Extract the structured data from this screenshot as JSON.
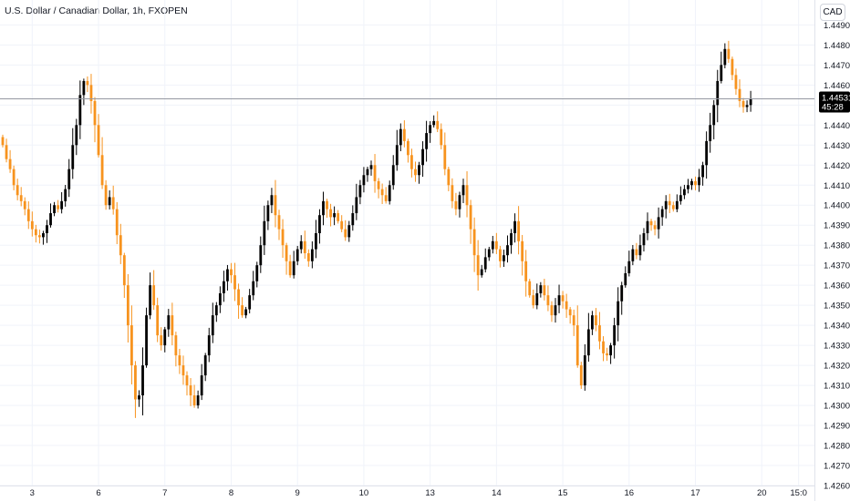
{
  "symbol": {
    "title": "U.S. Dollar / Canadian Dollar, 1h, FXOPEN"
  },
  "price_axis": {
    "currency": "CAD"
  },
  "last_price": {
    "value": "1.44531",
    "countdown": "45:28",
    "price": 1.44531
  },
  "colors": {
    "up": "#000000",
    "down": "#f7931e",
    "grid": "#f0f3fa",
    "tag_bg": "#000000",
    "line": "#9598a1"
  },
  "chart_data": {
    "type": "candlestick",
    "title": "U.S. Dollar / Canadian Dollar, 1h, FXOPEN",
    "ylim": [
      1.426,
      1.4497
    ],
    "y_ticks": [
      "1.42600",
      "1.42700",
      "1.42800",
      "1.42900",
      "1.43000",
      "1.43100",
      "1.43200",
      "1.43300",
      "1.43400",
      "1.43500",
      "1.43600",
      "1.43700",
      "1.43800",
      "1.43900",
      "1.44000",
      "1.44100",
      "1.44200",
      "1.44300",
      "1.44400",
      "1.44500",
      "1.44600",
      "1.44700",
      "1.44800",
      "1.44900"
    ],
    "x_ticks": [
      {
        "label": "3",
        "index": 8
      },
      {
        "label": "6",
        "index": 26
      },
      {
        "label": "7",
        "index": 44
      },
      {
        "label": "8",
        "index": 62
      },
      {
        "label": "9",
        "index": 80
      },
      {
        "label": "10",
        "index": 98
      },
      {
        "label": "13",
        "index": 116
      },
      {
        "label": "14",
        "index": 134
      },
      {
        "label": "15",
        "index": 152
      },
      {
        "label": "16",
        "index": 170
      },
      {
        "label": "17",
        "index": 188
      },
      {
        "label": "20",
        "index": 206
      },
      {
        "label": "15:0",
        "index": 216
      }
    ],
    "grid": true,
    "closes": [
      1.443,
      1.4423,
      1.4418,
      1.441,
      1.4405,
      1.4402,
      1.4398,
      1.4392,
      1.4388,
      1.4385,
      1.4384,
      1.4386,
      1.439,
      1.4396,
      1.44,
      1.4398,
      1.4402,
      1.4408,
      1.4418,
      1.443,
      1.444,
      1.4455,
      1.4462,
      1.446,
      1.4452,
      1.444,
      1.4425,
      1.441,
      1.44,
      1.4404,
      1.4398,
      1.4385,
      1.4375,
      1.436,
      1.434,
      1.432,
      1.4303,
      1.4305,
      1.432,
      1.4345,
      1.436,
      1.435,
      1.4335,
      1.433,
      1.4338,
      1.4345,
      1.4335,
      1.4325,
      1.432,
      1.4315,
      1.431,
      1.4305,
      1.43,
      1.4305,
      1.4315,
      1.4325,
      1.4335,
      1.4345,
      1.435,
      1.4356,
      1.4362,
      1.4368,
      1.4365,
      1.4358,
      1.435,
      1.4345,
      1.4348,
      1.4355,
      1.4362,
      1.437,
      1.438,
      1.4392,
      1.44,
      1.4405,
      1.4395,
      1.4388,
      1.438,
      1.4372,
      1.4365,
      1.4372,
      1.4378,
      1.4382,
      1.4376,
      1.4372,
      1.4378,
      1.4386,
      1.4395,
      1.4402,
      1.4398,
      1.4394,
      1.4396,
      1.4392,
      1.4388,
      1.4384,
      1.439,
      1.4396,
      1.4404,
      1.441,
      1.4415,
      1.4418,
      1.442,
      1.4412,
      1.4408,
      1.4405,
      1.4402,
      1.441,
      1.442,
      1.443,
      1.4438,
      1.4432,
      1.4425,
      1.4418,
      1.4415,
      1.442,
      1.4428,
      1.4436,
      1.444,
      1.4442,
      1.4438,
      1.443,
      1.4418,
      1.441,
      1.4402,
      1.4398,
      1.4405,
      1.441,
      1.44,
      1.4388,
      1.4375,
      1.4365,
      1.4368,
      1.4374,
      1.4378,
      1.4382,
      1.4378,
      1.4372,
      1.4375,
      1.438,
      1.4386,
      1.4392,
      1.4382,
      1.4372,
      1.4362,
      1.4355,
      1.435,
      1.4356,
      1.436,
      1.4355,
      1.435,
      1.4345,
      1.435,
      1.4355,
      1.4352,
      1.4348,
      1.4345,
      1.434,
      1.432,
      1.431,
      1.4325,
      1.4338,
      1.4345,
      1.434,
      1.4332,
      1.4326,
      1.4325,
      1.433,
      1.434,
      1.4352,
      1.436,
      1.4366,
      1.4372,
      1.4378,
      1.4375,
      1.438,
      1.4386,
      1.4392,
      1.439,
      1.4388,
      1.4394,
      1.4398,
      1.4402,
      1.44,
      1.4398,
      1.4402,
      1.4405,
      1.4408,
      1.441,
      1.4412,
      1.441,
      1.4414,
      1.442,
      1.4432,
      1.444,
      1.445,
      1.4462,
      1.447,
      1.4478,
      1.4473,
      1.4465,
      1.4458,
      1.4452,
      1.4449,
      1.445,
      1.4453
    ]
  }
}
